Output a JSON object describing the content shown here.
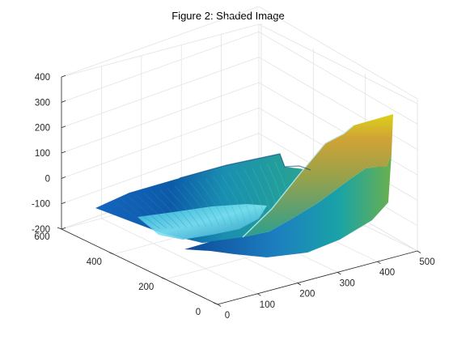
{
  "chart_data": {
    "type": "surface",
    "title": "Figure 2: Shaded Image",
    "xlabel": "",
    "ylabel": "",
    "zlabel": "",
    "xlim": [
      0,
      500
    ],
    "ylim": [
      0,
      600
    ],
    "zlim": [
      -200,
      400
    ],
    "x_ticks": [
      0,
      100,
      200,
      300,
      400,
      500
    ],
    "y_ticks": [
      0,
      200,
      400,
      600
    ],
    "z_ticks": [
      -200,
      -100,
      0,
      100,
      200,
      300,
      400
    ],
    "grid": true,
    "colormap": "parula",
    "surface_samples": [
      {
        "x": 0,
        "y": 600,
        "z": -120
      },
      {
        "x": 0,
        "y": 0,
        "z": -130
      },
      {
        "x": 250,
        "y": 600,
        "z": -60
      },
      {
        "x": 250,
        "y": 300,
        "z": -160
      },
      {
        "x": 350,
        "y": 200,
        "z": -150
      },
      {
        "x": 500,
        "y": 600,
        "z": 60
      },
      {
        "x": 500,
        "y": 300,
        "z": 280
      },
      {
        "x": 500,
        "y": 0,
        "z": 330
      }
    ],
    "colors": {
      "low": "#0d47a1",
      "mid": "#1fa2c8",
      "high": "#e9d215",
      "axis": "#262626",
      "grid": "#e3e3e3"
    }
  }
}
